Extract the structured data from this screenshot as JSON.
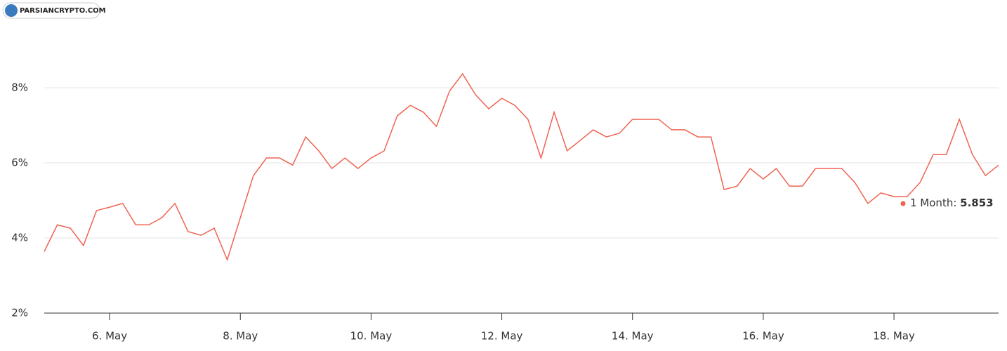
{
  "chart_data": {
    "type": "line",
    "watermark": "PARSIANCRYPTO.COM",
    "x": [
      5.0,
      5.2,
      5.4,
      5.6,
      5.8,
      6.0,
      6.2,
      6.4,
      6.6,
      6.8,
      7.0,
      7.2,
      7.4,
      7.6,
      7.8,
      8.0,
      8.2,
      8.4,
      8.6,
      8.8,
      9.0,
      9.2,
      9.4,
      9.6,
      9.8,
      10.0,
      10.2,
      10.4,
      10.6,
      10.8,
      11.0,
      11.2,
      11.4,
      11.6,
      11.8,
      12.0,
      12.2,
      12.4,
      12.6,
      12.8,
      13.0,
      13.2,
      13.4,
      13.6,
      13.8,
      14.0,
      14.2,
      14.4,
      14.6,
      14.8,
      15.0,
      15.2,
      15.4,
      15.6,
      15.8,
      16.0,
      16.2,
      16.4,
      16.6,
      16.8,
      17.0,
      17.2,
      17.4,
      17.6,
      17.8,
      18.0,
      18.2,
      18.4,
      18.6,
      18.8,
      19.0,
      19.2,
      19.4,
      19.6
    ],
    "series": [
      {
        "name": "1 Month",
        "color": "#ef6452",
        "values": [
          3.64,
          4.35,
          4.26,
          3.8,
          4.73,
          4.82,
          4.92,
          4.35,
          4.35,
          4.54,
          4.92,
          4.17,
          4.07,
          4.26,
          3.42,
          4.54,
          5.66,
          6.13,
          6.13,
          5.94,
          6.69,
          6.32,
          5.85,
          6.13,
          5.85,
          6.13,
          6.32,
          7.25,
          7.53,
          7.35,
          6.97,
          7.91,
          8.37,
          7.81,
          7.44,
          7.72,
          7.53,
          7.16,
          6.13,
          7.35,
          6.32,
          6.6,
          6.88,
          6.69,
          6.79,
          7.16,
          7.16,
          7.16,
          6.88,
          6.88,
          6.69,
          6.69,
          5.29,
          5.38,
          5.85,
          5.57,
          5.85,
          5.38,
          5.38,
          5.85,
          5.85,
          5.85,
          5.48,
          4.92,
          5.2,
          5.1,
          5.1,
          5.48,
          6.22,
          6.22,
          7.16,
          6.22,
          5.66,
          5.94
        ]
      }
    ],
    "tooltip": {
      "label": "1 Month:",
      "value": 5.853
    },
    "xlim": [
      5.0,
      19.6
    ],
    "xticks": [
      {
        "value": 6,
        "label": "6. May"
      },
      {
        "value": 8,
        "label": "8. May"
      },
      {
        "value": 10,
        "label": "10. May"
      },
      {
        "value": 12,
        "label": "12. May"
      },
      {
        "value": 14,
        "label": "14. May"
      },
      {
        "value": 16,
        "label": "16. May"
      },
      {
        "value": 18,
        "label": "18. May"
      }
    ],
    "ylim": [
      2,
      10
    ],
    "yticks": [
      {
        "value": 2,
        "label": "2%"
      },
      {
        "value": 4,
        "label": "4%"
      },
      {
        "value": 6,
        "label": "6%"
      },
      {
        "value": 8,
        "label": "8%"
      }
    ],
    "grid": true
  }
}
